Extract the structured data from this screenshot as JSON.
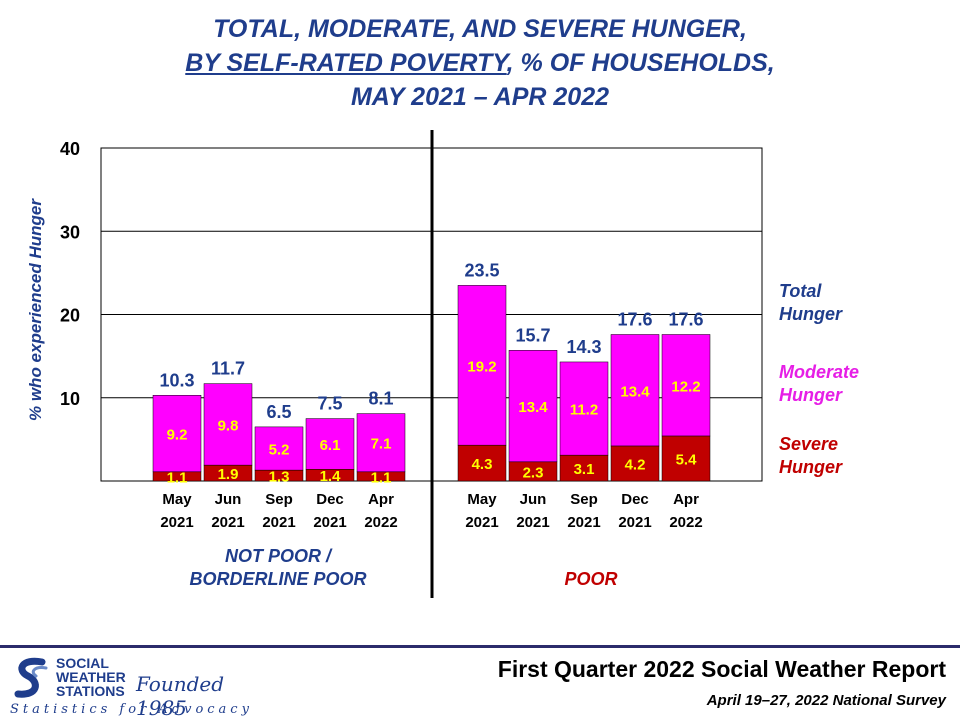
{
  "title": {
    "line1": "TOTAL, MODERATE, AND SEVERE HUNGER,",
    "line2_underlined": "BY SELF-RATED POVERTY",
    "line2_rest": ", % OF HOUSEHOLDS,",
    "line3": "MAY 2021 – APR 2022"
  },
  "chart_data": {
    "type": "bar",
    "stacked": true,
    "ylabel": "% who experienced Hunger",
    "ylim": [
      0,
      40
    ],
    "yticks": [
      10,
      20,
      30,
      40
    ],
    "grid": true,
    "groups": [
      {
        "name": "NOT POOR / BORDERLINE POOR",
        "name_lines": [
          "NOT POOR /",
          "BORDERLINE POOR"
        ],
        "color": "#1f3d8c",
        "categories": [
          [
            "May",
            "2021"
          ],
          [
            "Jun",
            "2021"
          ],
          [
            "Sep",
            "2021"
          ],
          [
            "Dec",
            "2021"
          ],
          [
            "Apr",
            "2022"
          ]
        ],
        "severe": [
          1.1,
          1.9,
          1.3,
          1.4,
          1.1
        ],
        "moderate": [
          9.2,
          9.8,
          5.2,
          6.1,
          7.1
        ],
        "total": [
          10.3,
          11.7,
          6.5,
          7.5,
          8.1
        ]
      },
      {
        "name": "POOR",
        "name_lines": [
          "POOR"
        ],
        "color": "#c00000",
        "categories": [
          [
            "May",
            "2021"
          ],
          [
            "Jun",
            "2021"
          ],
          [
            "Sep",
            "2021"
          ],
          [
            "Dec",
            "2021"
          ],
          [
            "Apr",
            "2022"
          ]
        ],
        "severe": [
          4.3,
          2.3,
          3.1,
          4.2,
          5.4
        ],
        "moderate": [
          19.2,
          13.4,
          11.2,
          13.4,
          12.2
        ],
        "total": [
          23.5,
          15.7,
          14.3,
          17.6,
          17.6
        ]
      }
    ],
    "legend": [
      {
        "lines": [
          "Total",
          "Hunger"
        ],
        "color": "#1f3d8c",
        "anchor": "total"
      },
      {
        "lines": [
          "Moderate",
          "Hunger"
        ],
        "color": "#e61ee6",
        "anchor": "moderate"
      },
      {
        "lines": [
          "Severe",
          "Hunger"
        ],
        "color": "#c00000",
        "anchor": "severe"
      }
    ],
    "colors": {
      "severe": "#c00000",
      "moderate": "#ff00ff",
      "total_label": "#1f3d8c",
      "inner_label": "#ffff00"
    }
  },
  "footer": {
    "report": "First Quarter 2022 Social Weather Report",
    "survey": "April 19–27, 2022 National Survey"
  },
  "logo": {
    "org_lines": [
      "SOCIAL",
      "WEATHER",
      "STATIONS"
    ],
    "founded": "Founded 1985",
    "tagline": "Statistics for Advocacy"
  }
}
